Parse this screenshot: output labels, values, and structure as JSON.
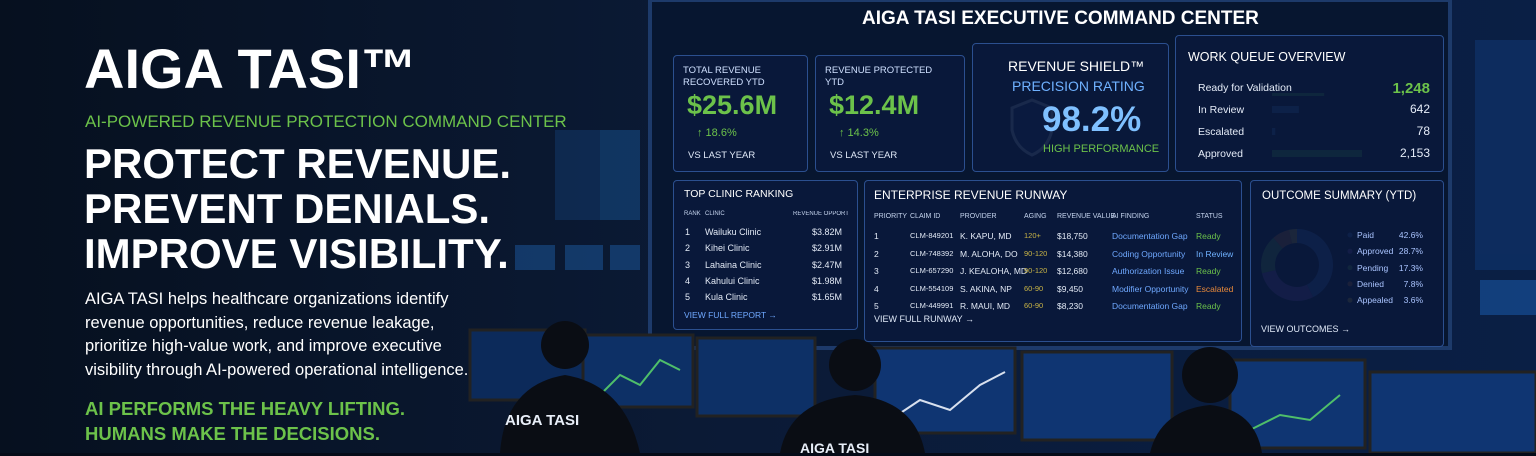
{
  "hero": {
    "title": "AIGA TASI™",
    "tagline": "AI-POWERED REVENUE PROTECTION COMMAND CENTER",
    "headline": [
      "PROTECT REVENUE.",
      "PREVENT DENIALS.",
      "IMPROVE VISIBILITY."
    ],
    "body": "AIGA TASI helps healthcare organizations identify revenue opportunities, reduce revenue leakage, prioritize high-value work, and improve executive visibility through AI-powered operational intelligence.",
    "closing": [
      "AI PERFORMS THE HEAVY LIFTING.",
      "HUMANS MAKE THE DECISIONS."
    ]
  },
  "dashboard": {
    "title": "AIGA TASI EXECUTIVE COMMAND CENTER",
    "kpis": [
      {
        "label": "TOTAL REVENUE RECOVERED YTD",
        "value": "$25.6M",
        "change": "↑ 18.6%",
        "footer": "VS LAST YEAR"
      },
      {
        "label": "REVENUE PROTECTED YTD",
        "value": "$12.4M",
        "change": "↑ 14.3%",
        "footer": "VS LAST YEAR"
      }
    ],
    "shield": {
      "title": "REVENUE SHIELD™",
      "subtitle": "PRECISION RATING",
      "value": "98.2%",
      "footer": "HIGH PERFORMANCE"
    },
    "work_queue": {
      "title": "WORK QUEUE OVERVIEW",
      "categories": [
        "Ready for Validation",
        "In Review",
        "Escalated",
        "Approved"
      ],
      "values": [
        1248,
        642,
        78,
        2153
      ],
      "value_labels": [
        "1,248",
        "642",
        "78",
        "2,153"
      ],
      "colors": [
        "#3fbf4f",
        "#3b7fd6",
        "#3b7fd6",
        "#3fbf4f"
      ]
    },
    "clinics": {
      "title": "TOP CLINIC RANKING",
      "columns": [
        "RANK",
        "CLINIC",
        "REVENUE OPPORTUNITY"
      ],
      "rows": [
        [
          "1",
          "Wailuku Clinic",
          "$3.82M"
        ],
        [
          "2",
          "Kihei Clinic",
          "$2.91M"
        ],
        [
          "3",
          "Lahaina Clinic",
          "$2.47M"
        ],
        [
          "4",
          "Kahului Clinic",
          "$1.98M"
        ],
        [
          "5",
          "Kula Clinic",
          "$1.65M"
        ]
      ],
      "link": "VIEW FULL REPORT →"
    },
    "runway": {
      "title": "ENTERPRISE REVENUE RUNWAY",
      "columns": [
        "PRIORITY",
        "CLAIM ID",
        "PROVIDER",
        "AGING",
        "REVENUE VALUE",
        "AI FINDING",
        "STATUS"
      ],
      "rows": [
        [
          "1",
          "CLM-849201",
          "K. KAPU, MD",
          "120+",
          "$18,750",
          "Documentation Gap",
          "Ready"
        ],
        [
          "2",
          "CLM-748392",
          "M. ALOHA, DO",
          "90-120",
          "$14,380",
          "Coding Opportunity",
          "In Review"
        ],
        [
          "3",
          "CLM-657290",
          "J. KEALOHA, MD",
          "90-120",
          "$12,680",
          "Authorization Issue",
          "Ready"
        ],
        [
          "4",
          "CLM-554109",
          "S. AKINA, NP",
          "60-90",
          "$9,450",
          "Modifier Opportunity",
          "Escalated"
        ],
        [
          "5",
          "CLM-449991",
          "R. MAUI, MD",
          "60-90",
          "$8,230",
          "Documentation Gap",
          "Ready"
        ]
      ],
      "link": "VIEW FULL RUNWAY →"
    },
    "outcomes": {
      "title": "OUTCOME SUMMARY (YTD)",
      "categories": [
        "Paid",
        "Approved",
        "Pending",
        "Denied",
        "Appealed"
      ],
      "values": [
        42.6,
        28.7,
        17.3,
        7.8,
        3.6
      ],
      "value_labels": [
        "42.6%",
        "28.7%",
        "17.3%",
        "7.8%",
        "3.6%"
      ],
      "colors": [
        "#3a6fd8",
        "#7a4fc9",
        "#5fae4a",
        "#d9772e",
        "#e0c23a"
      ],
      "link": "VIEW OUTCOMES →"
    }
  },
  "badges": [
    "AIGA TASI",
    "AIGA TASI"
  ]
}
